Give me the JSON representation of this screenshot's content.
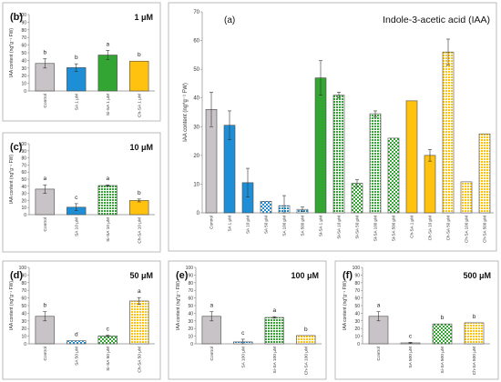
{
  "palette": {
    "gray": "#c8c3c6",
    "blue": "#1e8fd6",
    "green": "#33a532",
    "yellow": "#ffc20e",
    "frame": "#aaaaaa",
    "axis": "#888888"
  },
  "y_label": "IAA content (ng*g⁻¹ FW)",
  "chart_data": [
    {
      "id": "a",
      "type": "bar",
      "panel_label": "(a)",
      "title": "Indole-3-acetic acid (IAA)",
      "ylim": [
        0,
        70
      ],
      "yticks": [
        0,
        10,
        20,
        30,
        40,
        50,
        60,
        70
      ],
      "categories": [
        "Control",
        "SA 1 μM",
        "SA 10 μM",
        "SA 50 μM",
        "SA 100 μM",
        "SA 500 μM",
        "Si-SA 1 μM",
        "Si-SA 10 μM",
        "Si-SA 50 μM",
        "Si-SA 100 μM",
        "Si-SA 500 μM",
        "Ch-SA 1 μM",
        "Ch-SA 10 μM",
        "Ch-SA 50 μM",
        "Ch-SA 100 μM",
        "Ch-SA 500 μM"
      ],
      "values": [
        36,
        30.5,
        10.5,
        4,
        2.5,
        1.2,
        47,
        41,
        10.3,
        34.5,
        26,
        39,
        20,
        56,
        10.8,
        27.5
      ],
      "errors": [
        6,
        5,
        5,
        0,
        3.5,
        0.8,
        6,
        1,
        1.2,
        1,
        0,
        0,
        2,
        4.5,
        0,
        0
      ],
      "fill": [
        "gray",
        "blue",
        "blue",
        "blue",
        "blue",
        "blue",
        "green",
        "green",
        "green",
        "green",
        "green",
        "yellow",
        "yellow",
        "yellow",
        "yellow",
        "yellow"
      ],
      "pattern": [
        "solid",
        "solid",
        "solid",
        "check",
        "dots",
        "dots",
        "solid",
        "dots",
        "check",
        "dots",
        "check",
        "solid",
        "solid",
        "dots",
        "dots",
        "dots"
      ],
      "letters": []
    },
    {
      "id": "b",
      "type": "bar",
      "panel_label": "(b)",
      "concentration": "1 μM",
      "ylim": [
        0,
        100
      ],
      "yticks": [
        0,
        10,
        20,
        30,
        40,
        50,
        60,
        70,
        80,
        90,
        100
      ],
      "categories": [
        "Control",
        "SA 1 μM",
        "Si-SA 1 μM",
        "Ch-SA 1 μM"
      ],
      "values": [
        36,
        30.5,
        47,
        39
      ],
      "errors": [
        6,
        5,
        6,
        0
      ],
      "fill": [
        "gray",
        "blue",
        "green",
        "yellow"
      ],
      "pattern": [
        "solid",
        "solid",
        "solid",
        "solid"
      ],
      "letters": [
        "b",
        "b",
        "a",
        "b"
      ]
    },
    {
      "id": "c",
      "type": "bar",
      "panel_label": "(c)",
      "concentration": "10 μM",
      "ylim": [
        0,
        100
      ],
      "yticks": [
        0,
        10,
        20,
        30,
        40,
        50,
        60,
        70,
        80,
        90,
        100
      ],
      "categories": [
        "Control",
        "SA 10 μM",
        "Si-SA 10 μM",
        "Ch-SA 10 μM"
      ],
      "values": [
        36,
        10.5,
        41,
        20
      ],
      "errors": [
        6,
        5,
        1,
        2
      ],
      "fill": [
        "gray",
        "blue",
        "green",
        "yellow"
      ],
      "pattern": [
        "solid",
        "solid",
        "dots",
        "solid"
      ],
      "letters": [
        "a",
        "c",
        "a",
        "b"
      ]
    },
    {
      "id": "d",
      "type": "bar",
      "panel_label": "(d)",
      "concentration": "50 μM",
      "ylim": [
        0,
        100
      ],
      "yticks": [
        0,
        10,
        20,
        30,
        40,
        50,
        60,
        70,
        80,
        90,
        100
      ],
      "categories": [
        "Control",
        "SA 50 μM",
        "Si-SA 50 μM",
        "Ch-SA 50 μM"
      ],
      "values": [
        36,
        4,
        10.3,
        56
      ],
      "errors": [
        6,
        0,
        1.2,
        4.5
      ],
      "fill": [
        "gray",
        "blue",
        "green",
        "yellow"
      ],
      "pattern": [
        "solid",
        "check",
        "check",
        "dots"
      ],
      "letters": [
        "b",
        "d",
        "c",
        "a"
      ]
    },
    {
      "id": "e",
      "type": "bar",
      "panel_label": "(e)",
      "concentration": "100 μM",
      "ylim": [
        0,
        100
      ],
      "yticks": [
        0,
        10,
        20,
        30,
        40,
        50,
        60,
        70,
        80,
        90,
        100
      ],
      "categories": [
        "Control",
        "SA 100 μM",
        "Si-SA 100 μM",
        "Ch-SA 100 μM"
      ],
      "values": [
        36,
        2.5,
        34.5,
        10.8
      ],
      "errors": [
        6,
        3.5,
        1,
        0
      ],
      "fill": [
        "gray",
        "blue",
        "green",
        "yellow"
      ],
      "pattern": [
        "solid",
        "dots",
        "dots",
        "dots"
      ],
      "letters": [
        "a",
        "c",
        "a",
        "b"
      ]
    },
    {
      "id": "f",
      "type": "bar",
      "panel_label": "(f)",
      "concentration": "500 μM",
      "ylim": [
        0,
        100
      ],
      "yticks": [
        0,
        10,
        20,
        30,
        40,
        50,
        60,
        70,
        80,
        90,
        100
      ],
      "categories": [
        "Control",
        "SA 500 μM",
        "Si-SA 500 μM",
        "Ch-SA 500 μM"
      ],
      "values": [
        36,
        1.2,
        26,
        27.5
      ],
      "errors": [
        6,
        0.8,
        0,
        0
      ],
      "fill": [
        "gray",
        "blue",
        "green",
        "yellow"
      ],
      "pattern": [
        "solid",
        "dots",
        "check",
        "dots"
      ],
      "letters": [
        "a",
        "c",
        "b",
        "b"
      ]
    }
  ]
}
